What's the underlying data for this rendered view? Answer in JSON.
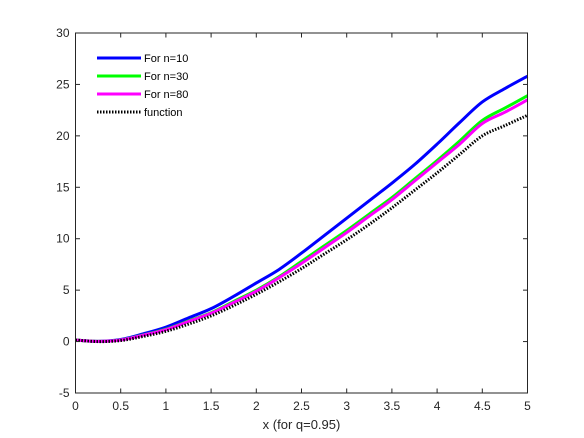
{
  "chart_data": {
    "type": "line",
    "title": "",
    "xlabel": "x (for q=0.95)",
    "ylabel": "",
    "xlim": [
      0,
      5
    ],
    "ylim": [
      -5,
      30
    ],
    "xticks": [
      0,
      0.5,
      1,
      1.5,
      2,
      2.5,
      3,
      3.5,
      4,
      4.5,
      5
    ],
    "xtick_labels": [
      "0",
      "0.5",
      "1",
      "1.5",
      "2",
      "2.5",
      "3",
      "3.5",
      "4",
      "4.5",
      "5"
    ],
    "yticks": [
      -5,
      0,
      5,
      10,
      15,
      20,
      25,
      30
    ],
    "ytick_labels": [
      "-5",
      "0",
      "5",
      "10",
      "15",
      "20",
      "25",
      "30"
    ],
    "grid": false,
    "legend_position": "top-left",
    "x": [
      0,
      0.25,
      0.5,
      0.75,
      1,
      1.25,
      1.5,
      1.75,
      2,
      2.25,
      2.5,
      2.75,
      3,
      3.25,
      3.5,
      3.75,
      4,
      4.25,
      4.5,
      4.75,
      5
    ],
    "series": [
      {
        "name": "For n=10",
        "color": "#0000ff",
        "style": "solid",
        "values": [
          0.15,
          0.02,
          0.2,
          0.75,
          1.4,
          2.3,
          3.2,
          4.4,
          5.7,
          7.0,
          8.6,
          10.3,
          12.0,
          13.7,
          15.4,
          17.2,
          19.2,
          21.3,
          23.3,
          24.6,
          25.8
        ]
      },
      {
        "name": "For n=30",
        "color": "#00ff00",
        "style": "solid",
        "values": [
          0.15,
          0.02,
          0.16,
          0.64,
          1.2,
          2.0,
          2.8,
          3.9,
          5.0,
          6.3,
          7.8,
          9.3,
          10.8,
          12.4,
          14.0,
          15.8,
          17.6,
          19.5,
          21.5,
          22.7,
          23.9
        ]
      },
      {
        "name": "For n=80",
        "color": "#ff00ff",
        "style": "solid",
        "values": [
          0.15,
          0.02,
          0.15,
          0.62,
          1.15,
          1.95,
          2.75,
          3.8,
          4.9,
          6.2,
          7.6,
          9.1,
          10.6,
          12.2,
          13.8,
          15.6,
          17.4,
          19.2,
          21.2,
          22.3,
          23.5
        ]
      },
      {
        "name": "function",
        "color": "#000000",
        "style": "dotted",
        "values": [
          0.15,
          0.0,
          0.1,
          0.5,
          1.0,
          1.7,
          2.5,
          3.5,
          4.6,
          5.8,
          7.1,
          8.5,
          9.9,
          11.4,
          13.0,
          14.7,
          16.4,
          18.2,
          20.0,
          21.0,
          22.0
        ]
      }
    ]
  }
}
